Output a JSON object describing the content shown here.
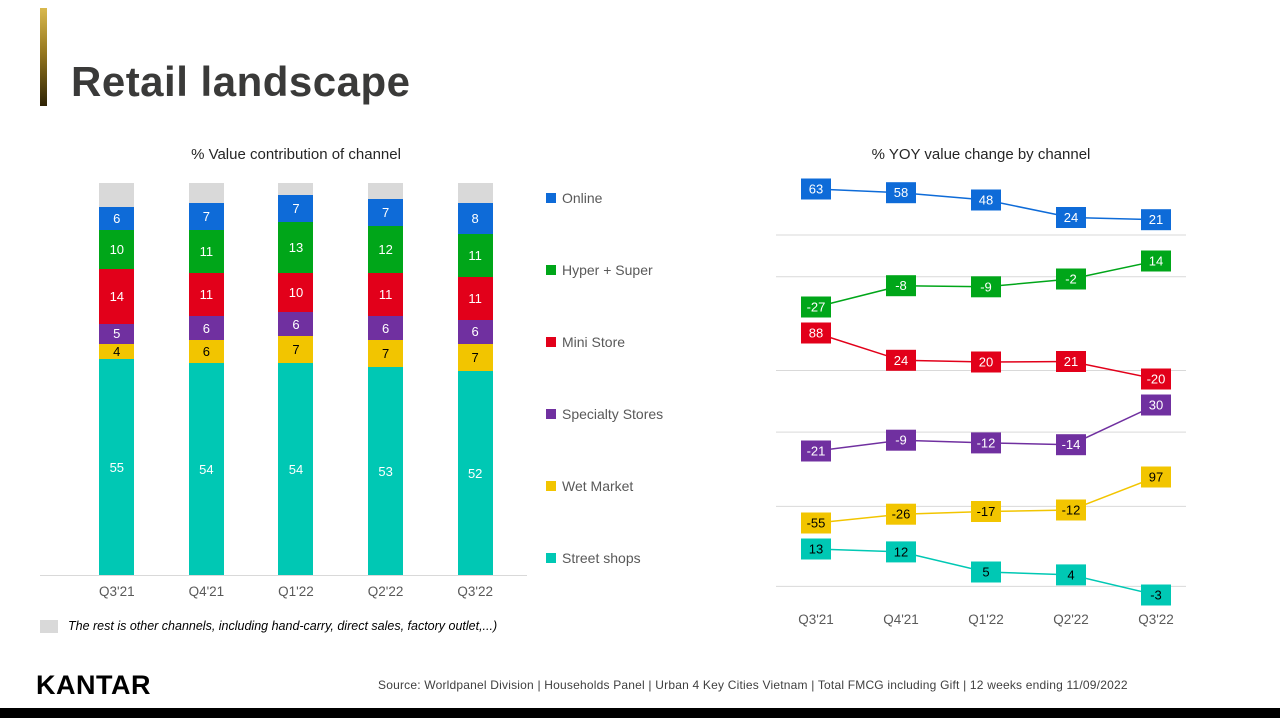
{
  "slide": {
    "title": "Retail landscape"
  },
  "legend": {
    "items": [
      {
        "label": "Online",
        "color": "#0e6bd8"
      },
      {
        "label": "Hyper + Super",
        "color": "#00a619"
      },
      {
        "label": "Mini Store",
        "color": "#e2001a"
      },
      {
        "label": "Specialty Stores",
        "color": "#7030a0"
      },
      {
        "label": "Wet Market",
        "color": "#f2c500"
      },
      {
        "label": "Street shops",
        "color": "#00c8b4"
      }
    ]
  },
  "footnote": {
    "swatch_color": "#d9d9d9",
    "text": "The rest is other channels, including hand-carry, direct sales, factory outlet,...)"
  },
  "footer": {
    "logo": "KANTAR",
    "source": "Source:  Worldpanel  Division | Households Panel | Urban  4 Key Cities Vietnam  | Total FMCG including  Gift | 12 weeks ending  11/09/2022"
  },
  "chart_data": [
    {
      "type": "bar",
      "stacked": true,
      "title": "% Value contribution of channel",
      "categories": [
        "Q3'21",
        "Q4'21",
        "Q1'22",
        "Q2'22",
        "Q3'22"
      ],
      "ylim": [
        0,
        100
      ],
      "series": [
        {
          "name": "Street shops",
          "color": "#00c8b4",
          "text": "#ffffff",
          "values": [
            55,
            54,
            54,
            53,
            52
          ]
        },
        {
          "name": "Wet Market",
          "color": "#f2c500",
          "text": "#000000",
          "values": [
            4,
            6,
            7,
            7,
            7
          ]
        },
        {
          "name": "Specialty Stores",
          "color": "#7030a0",
          "text": "#ffffff",
          "values": [
            5,
            6,
            6,
            6,
            6
          ]
        },
        {
          "name": "Mini Store",
          "color": "#e2001a",
          "text": "#ffffff",
          "values": [
            14,
            11,
            10,
            11,
            11
          ]
        },
        {
          "name": "Hyper + Super",
          "color": "#00a619",
          "text": "#ffffff",
          "values": [
            10,
            11,
            13,
            12,
            11
          ]
        },
        {
          "name": "Online",
          "color": "#0e6bd8",
          "text": "#ffffff",
          "values": [
            6,
            7,
            7,
            7,
            8
          ]
        },
        {
          "name": "Other channels",
          "color": "#d9d9d9",
          "text": "",
          "no_label": true,
          "values": [
            6,
            5,
            3,
            4,
            5
          ]
        }
      ]
    },
    {
      "type": "line",
      "title": "% YOY value change by channel",
      "categories": [
        "Q3'21",
        "Q4'21",
        "Q1'22",
        "Q2'22",
        "Q3'22"
      ],
      "series": [
        {
          "name": "Online",
          "color": "#0e6bd8",
          "text": "#ffffff",
          "values": [
            63,
            58,
            48,
            24,
            21
          ]
        },
        {
          "name": "Hyper + Super",
          "color": "#00a619",
          "text": "#ffffff",
          "values": [
            -27,
            -8,
            -9,
            -2,
            14
          ]
        },
        {
          "name": "Mini Store",
          "color": "#e2001a",
          "text": "#ffffff",
          "values": [
            88,
            24,
            20,
            21,
            -20
          ]
        },
        {
          "name": "Specialty Stores",
          "color": "#7030a0",
          "text": "#ffffff",
          "values": [
            -21,
            -9,
            -12,
            -14,
            30
          ]
        },
        {
          "name": "Wet Market",
          "color": "#f2c500",
          "text": "#000000",
          "values": [
            -55,
            -26,
            -17,
            -12,
            97
          ]
        },
        {
          "name": "Street shops",
          "color": "#00c8b4",
          "text": "#000000",
          "values": [
            13,
            12,
            5,
            4,
            -3
          ]
        }
      ]
    }
  ]
}
